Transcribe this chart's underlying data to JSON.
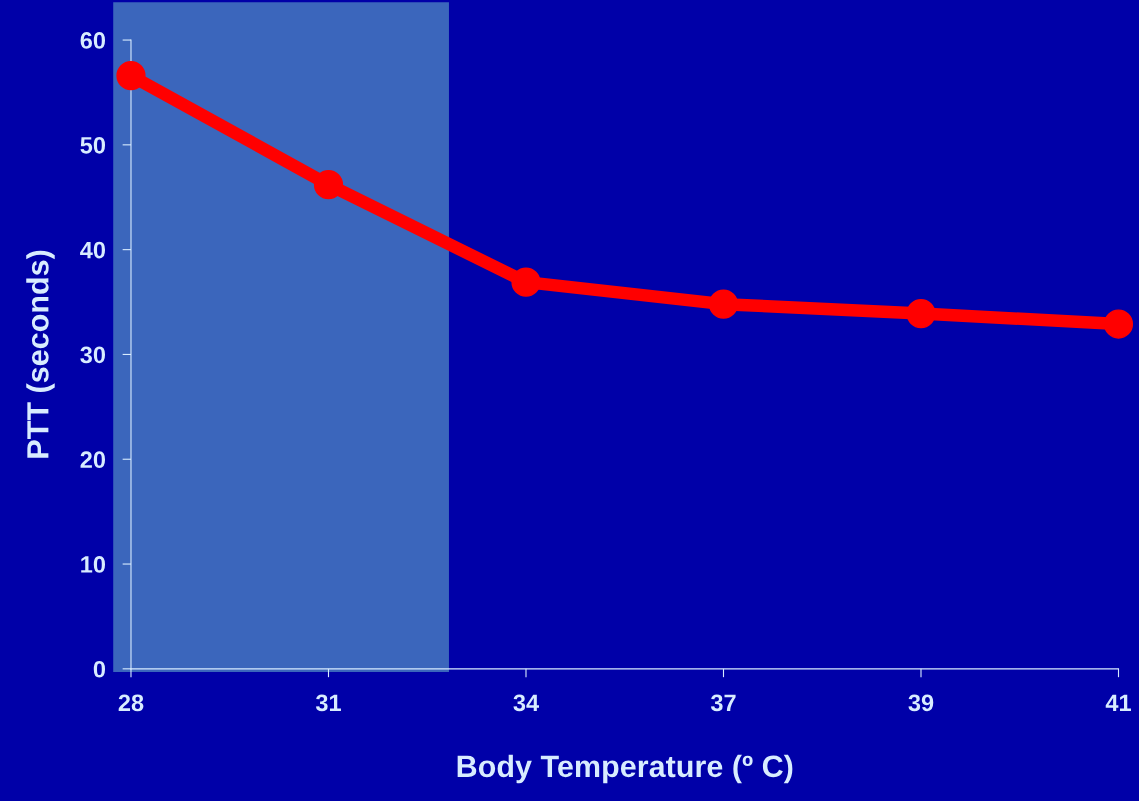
{
  "chart_data": {
    "type": "line",
    "xlabel": "Body Temperature (º C)",
    "ylabel": "PTT (seconds)",
    "categories": [
      "28",
      "31",
      "34",
      "37",
      "39",
      "41"
    ],
    "series": [
      {
        "color": "#ff0000",
        "values": [
          56.6,
          46.2,
          36.9,
          34.8,
          33.9,
          32.9
        ]
      }
    ],
    "ylim": [
      0,
      60
    ],
    "yticks": [
      0,
      10,
      20,
      30,
      40,
      50,
      60
    ],
    "marker": "circle",
    "line_style": "solid",
    "grid": false,
    "legend": false
  }
}
